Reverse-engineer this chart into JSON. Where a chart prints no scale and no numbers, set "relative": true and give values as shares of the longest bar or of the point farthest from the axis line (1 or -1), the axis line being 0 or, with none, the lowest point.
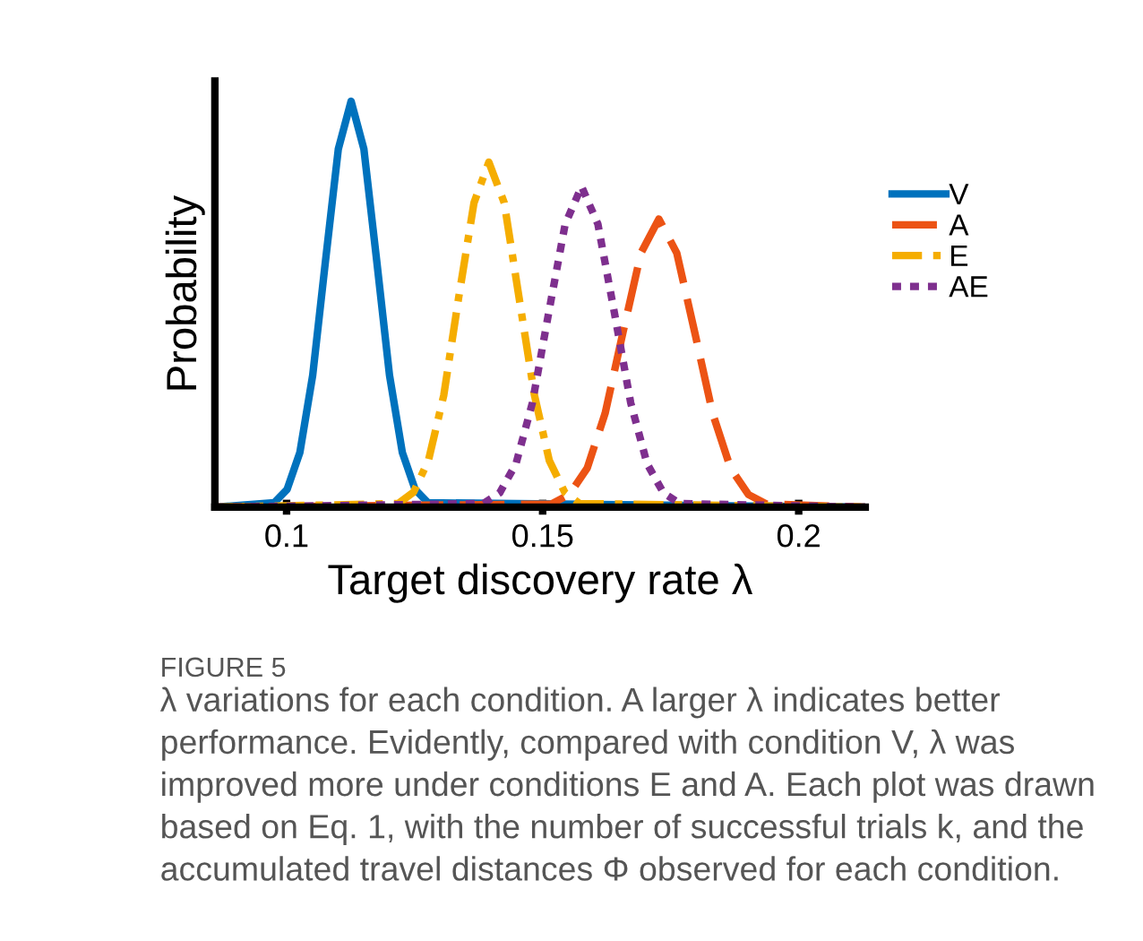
{
  "chart_data": {
    "type": "line",
    "relative": true,
    "xlabel": "Target discovery rate λ",
    "ylabel": "Probability",
    "xlim": [
      0.086,
      0.213
    ],
    "xticks": [
      0.1,
      0.15,
      0.2
    ],
    "grid": false,
    "legend": "right",
    "marker": "none",
    "annotations": [
      "FIGURE 5",
      "λ variations for each condition. A larger λ indicates better performance. Evidently, compared with condition V, λ was improved more under conditions E and A. Each plot was drawn based on Eq. 1, with the number of successful trials k, and the accumulated travel distances Φ observed for each condition."
    ],
    "series": [
      {
        "name": "V",
        "color": "#0072bd",
        "line_style": "solid",
        "x": [
          0.086,
          0.0976,
          0.1001,
          0.1026,
          0.1051,
          0.1076,
          0.1101,
          0.1126,
          0.1151,
          0.1176,
          0.1201,
          0.1226,
          0.1251,
          0.1276,
          0.213
        ],
        "values": [
          0,
          0.011,
          0.044,
          0.135,
          0.325,
          0.607,
          0.882,
          1,
          0.882,
          0.607,
          0.325,
          0.135,
          0.044,
          0.011,
          0
        ]
      },
      {
        "name": "A",
        "color": "#ec5314",
        "line_style": "dashed",
        "x": [
          0.086,
          0.1517,
          0.1552,
          0.1587,
          0.1622,
          0.1657,
          0.1692,
          0.1727,
          0.1762,
          0.1797,
          0.1832,
          0.1867,
          0.1902,
          0.1937,
          0.213
        ],
        "values": [
          0,
          0.008,
          0.031,
          0.096,
          0.231,
          0.431,
          0.626,
          0.71,
          0.626,
          0.431,
          0.231,
          0.096,
          0.031,
          0.008,
          0
        ]
      },
      {
        "name": "E",
        "color": "#f5ad00",
        "line_style": "dashdot",
        "x": [
          0.086,
          0.1218,
          0.1248,
          0.1277,
          0.1307,
          0.1336,
          0.1366,
          0.1395,
          0.1425,
          0.1454,
          0.1484,
          0.1513,
          0.1543,
          0.1572,
          0.213
        ],
        "values": [
          0,
          0.009,
          0.037,
          0.115,
          0.276,
          0.516,
          0.75,
          0.85,
          0.75,
          0.516,
          0.276,
          0.115,
          0.037,
          0.009,
          0
        ]
      },
      {
        "name": "AE",
        "color": "#7e2f8e",
        "line_style": "dotted",
        "x": [
          0.086,
          0.1384,
          0.1416,
          0.1448,
          0.148,
          0.1512,
          0.1544,
          0.1576,
          0.1608,
          0.164,
          0.1672,
          0.1704,
          0.1736,
          0.1768,
          0.213
        ],
        "values": [
          0,
          0.009,
          0.035,
          0.107,
          0.257,
          0.48,
          0.697,
          0.79,
          0.697,
          0.48,
          0.257,
          0.107,
          0.035,
          0.009,
          0
        ]
      }
    ]
  }
}
